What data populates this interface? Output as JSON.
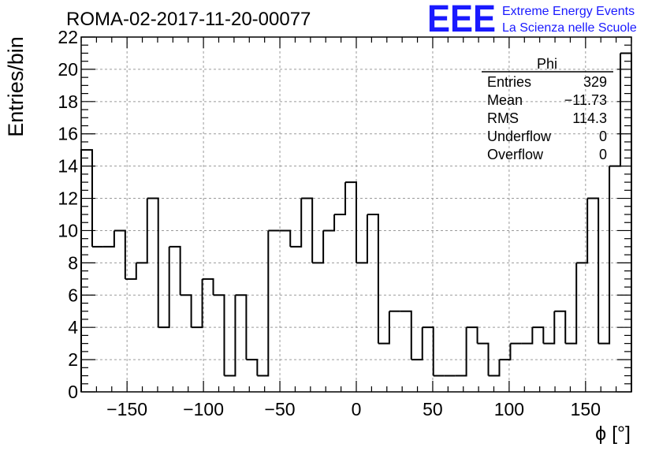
{
  "header": {
    "title": "ROMA-02-2017-11-20-00077",
    "logo_text": "EEE",
    "org_line1": "Extreme Energy Events",
    "org_line2": "La Scienza nelle Scuole",
    "logo_color": "#1a1aff"
  },
  "stats": {
    "name": "Phi",
    "rows": [
      {
        "label": "Entries",
        "value": "329"
      },
      {
        "label": "Mean",
        "value": "−11.73"
      },
      {
        "label": "RMS",
        "value": "114.3"
      },
      {
        "label": "Underflow",
        "value": "0"
      },
      {
        "label": "Overflow",
        "value": "0"
      }
    ]
  },
  "chart_data": {
    "type": "bar",
    "style": "step-histogram",
    "title": "ROMA-02-2017-11-20-00077",
    "xlabel": "ϕ [°]",
    "ylabel": "Entries/bin",
    "xlim": [
      -180,
      180
    ],
    "ylim": [
      0,
      22
    ],
    "bin_width": 7.2,
    "x_ticks": [
      -150,
      -100,
      -50,
      0,
      50,
      100,
      150
    ],
    "x_tick_labels": [
      "−150",
      "−100",
      "−50",
      "0",
      "50",
      "100",
      "150"
    ],
    "y_ticks": [
      0,
      2,
      4,
      6,
      8,
      10,
      12,
      14,
      16,
      18,
      20,
      22
    ],
    "grid": true,
    "values": [
      15,
      9,
      9,
      10,
      7,
      8,
      12,
      4,
      9,
      6,
      4,
      7,
      6,
      1,
      6,
      2,
      1,
      10,
      10,
      9,
      12,
      8,
      10,
      11,
      13,
      8,
      11,
      3,
      5,
      5,
      2,
      4,
      1,
      1,
      1,
      4,
      3,
      1,
      2,
      3,
      3,
      4,
      3,
      5,
      3,
      8,
      12,
      3,
      14,
      21
    ]
  }
}
